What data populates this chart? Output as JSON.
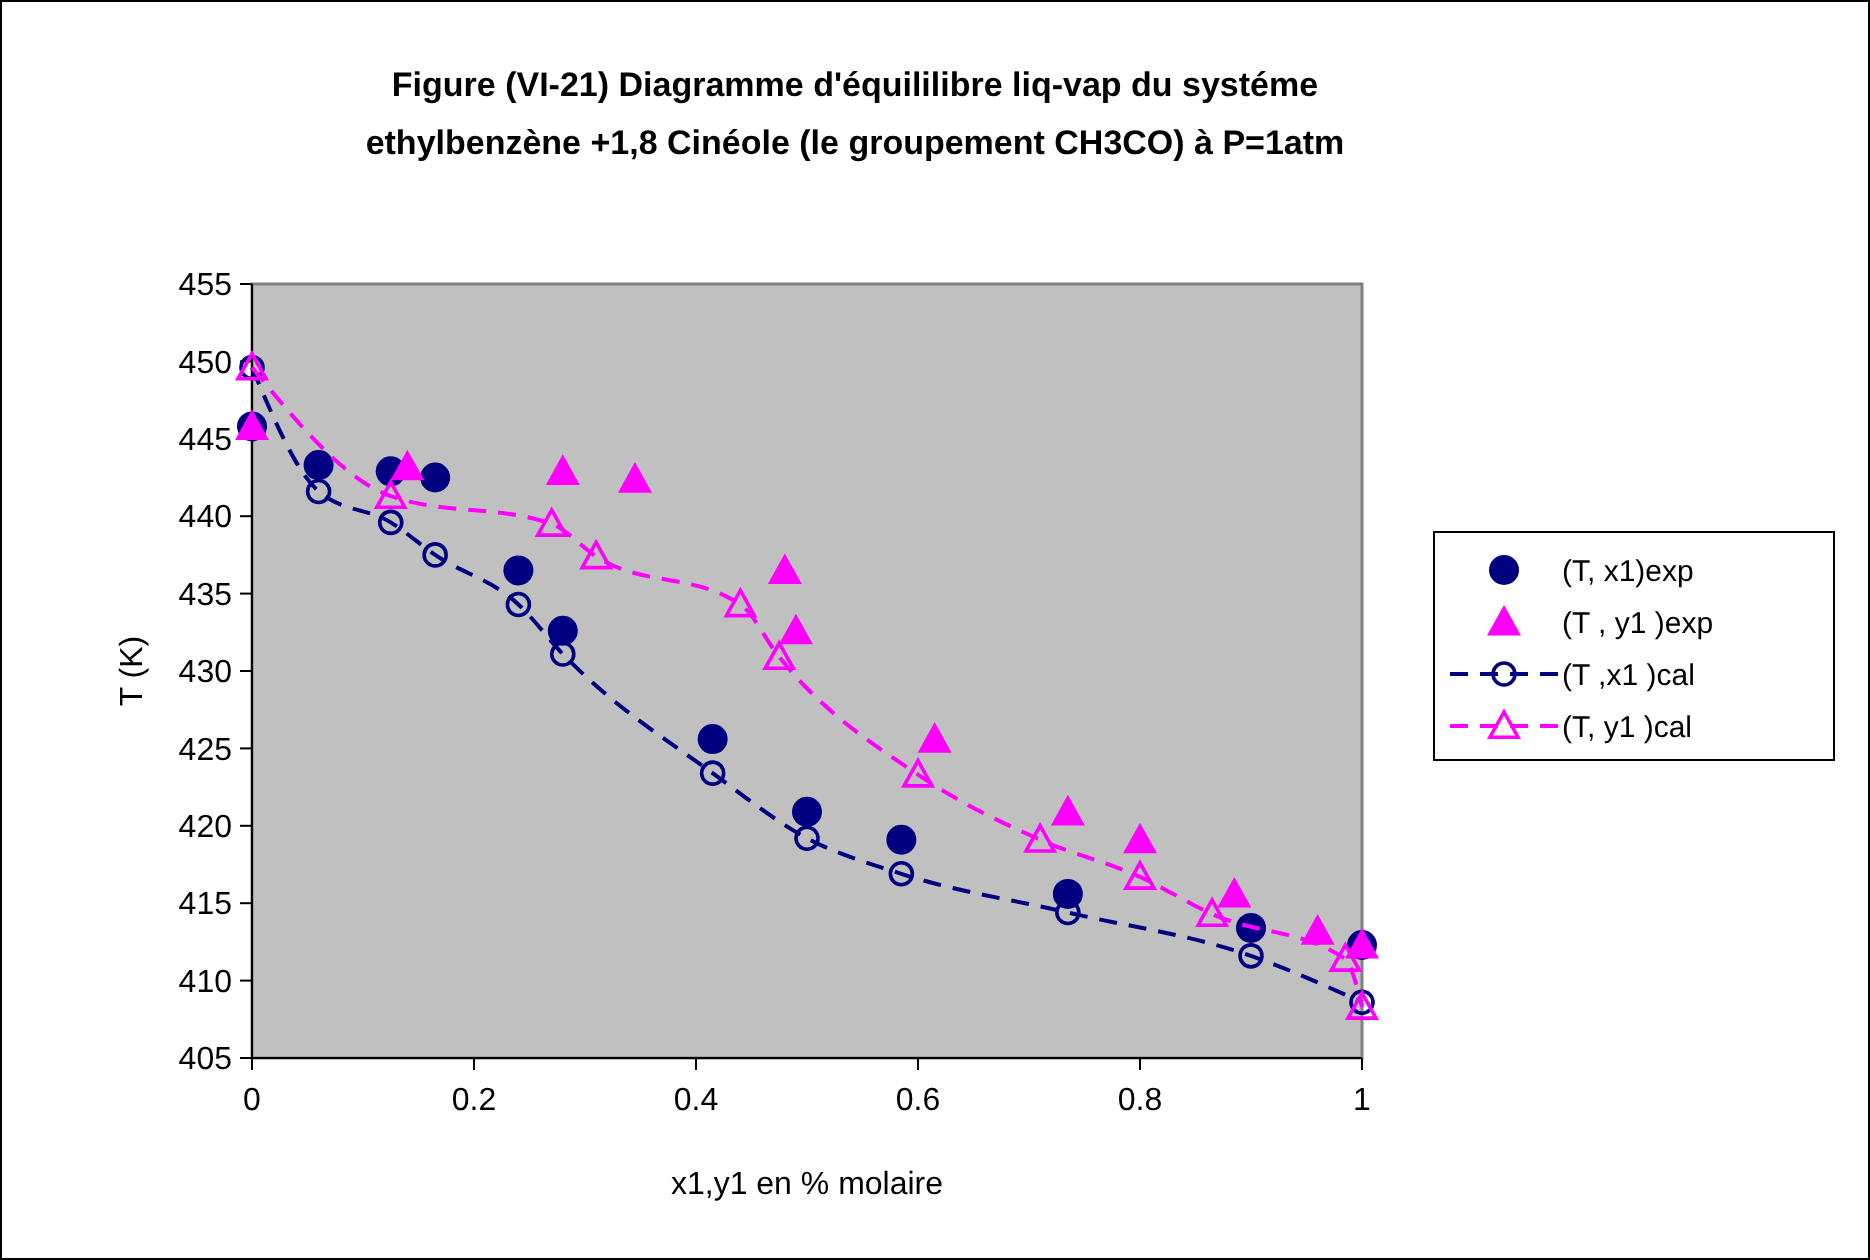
{
  "chart_data": {
    "type": "scatter",
    "title": "Figure (VI-21) Diagramme d'équililibre liq-vap du systéme ethylbenzène +1,8 Cinéole (le groupement CH3CO) à P=1atm",
    "xlabel": "x1,y1 en % molaire",
    "ylabel": "T (K)",
    "xlim": [
      0,
      1
    ],
    "xticks": [
      0,
      0.2,
      0.4,
      0.6,
      0.8,
      1
    ],
    "ylim": [
      405,
      455
    ],
    "yticks": [
      405,
      410,
      415,
      420,
      425,
      430,
      435,
      440,
      445,
      450,
      455
    ],
    "grid": false,
    "legend": "right",
    "series": [
      {
        "name": "(T, x1)exp",
        "color": "#000080",
        "marker": "circle",
        "x": [
          0,
          0.06,
          0.125,
          0.165,
          0.24,
          0.28,
          0.415,
          0.5,
          0.585,
          0.735,
          0.9,
          1
        ],
        "values": [
          445.8,
          443.3,
          442.9,
          442.5,
          436.5,
          432.6,
          425.6,
          420.9,
          419.1,
          415.6,
          413.4,
          412.3
        ]
      },
      {
        "name": "(T , y1 )exp",
        "color": "#ff00ff",
        "marker": "triangle",
        "x": [
          0,
          0.14,
          0.28,
          0.345,
          0.48,
          0.49,
          0.615,
          0.735,
          0.8,
          0.885,
          0.96,
          1
        ],
        "values": [
          445.8,
          443.2,
          442.9,
          442.4,
          436.5,
          432.6,
          425.6,
          420.9,
          419.1,
          415.6,
          413.2,
          412.3
        ]
      },
      {
        "name": "(T ,x1 )cal",
        "type": "line",
        "color": "#000080",
        "marker": "circle",
        "line_style": "dashed",
        "x": [
          0,
          0.06,
          0.125,
          0.165,
          0.24,
          0.28,
          0.415,
          0.5,
          0.585,
          0.735,
          0.9,
          1
        ],
        "values": [
          449.6,
          441.6,
          439.6,
          437.5,
          434.3,
          431.1,
          423.4,
          419.2,
          416.9,
          414.4,
          411.6,
          408.6
        ]
      },
      {
        "name": "(T, y1 )cal",
        "type": "line",
        "color": "#ff00ff",
        "marker": "triangle",
        "line_style": "dashed",
        "x": [
          0,
          0.125,
          0.27,
          0.31,
          0.44,
          0.475,
          0.6,
          0.71,
          0.8,
          0.865,
          0.985,
          1
        ],
        "values": [
          449.6,
          441.3,
          439.5,
          437.4,
          434.3,
          430.9,
          423.3,
          419.1,
          416.7,
          414.3,
          411.4,
          408.3
        ]
      }
    ]
  }
}
